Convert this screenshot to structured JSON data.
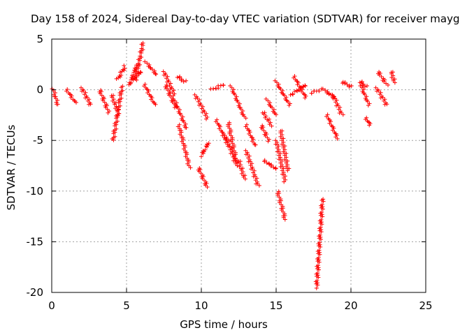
{
  "chart_data": {
    "type": "scatter",
    "title": "Day 158 of 2024, Sidereal Day-to-day VTEC variation (SDTVAR) for receiver mayg",
    "xlabel": "GPS time / hours",
    "ylabel": "SDTVAR / TECUs",
    "xlim": [
      0,
      25
    ],
    "ylim": [
      -20,
      5
    ],
    "xticks": [
      0,
      5,
      10,
      15,
      20,
      25
    ],
    "yticks": [
      5,
      0,
      -5,
      -10,
      -15,
      -20
    ],
    "grid": true,
    "marker": "+",
    "color": "#ff0000",
    "arcs": [
      {
        "x": [
          0.1,
          0.4
        ],
        "y": [
          0.0,
          -1.5
        ]
      },
      {
        "x": [
          1.0,
          1.6
        ],
        "y": [
          0.0,
          -1.3
        ]
      },
      {
        "x": [
          2.0,
          2.6
        ],
        "y": [
          0.2,
          -1.5
        ]
      },
      {
        "x": [
          3.2,
          3.8
        ],
        "y": [
          0.0,
          -2.2
        ]
      },
      {
        "x": [
          4.0,
          4.5
        ],
        "y": [
          -0.5,
          -2.5
        ]
      },
      {
        "x": [
          4.4,
          4.9
        ],
        "y": [
          1.0,
          2.3
        ]
      },
      {
        "x": [
          4.1,
          4.7
        ],
        "y": [
          -5.0,
          0.3
        ]
      },
      {
        "x": [
          5.2,
          5.7
        ],
        "y": [
          0.5,
          2.5
        ]
      },
      {
        "x": [
          5.6,
          6.1
        ],
        "y": [
          1.0,
          4.6
        ]
      },
      {
        "x": [
          5.3,
          6.0
        ],
        "y": [
          0.8,
          1.8
        ]
      },
      {
        "x": [
          6.3,
          7.0
        ],
        "y": [
          2.7,
          1.5
        ]
      },
      {
        "x": [
          6.2,
          6.9
        ],
        "y": [
          0.5,
          -1.5
        ]
      },
      {
        "x": [
          7.5,
          8.2
        ],
        "y": [
          1.8,
          -0.5
        ]
      },
      {
        "x": [
          7.6,
          8.3
        ],
        "y": [
          0.5,
          -1.8
        ]
      },
      {
        "x": [
          8.4,
          8.9
        ],
        "y": [
          1.3,
          0.8
        ]
      },
      {
        "x": [
          8.2,
          9.0
        ],
        "y": [
          -1.0,
          -3.8
        ]
      },
      {
        "x": [
          8.5,
          9.2
        ],
        "y": [
          -3.5,
          -7.6
        ]
      },
      {
        "x": [
          9.6,
          10.4
        ],
        "y": [
          -0.5,
          -2.8
        ]
      },
      {
        "x": [
          9.8,
          10.4
        ],
        "y": [
          -7.7,
          -9.6
        ]
      },
      {
        "x": [
          10.0,
          10.5
        ],
        "y": [
          -6.5,
          -5.2
        ]
      },
      {
        "x": [
          10.7,
          11.5
        ],
        "y": [
          0.0,
          0.5
        ]
      },
      {
        "x": [
          11.0,
          11.8
        ],
        "y": [
          -3.0,
          -5.5
        ]
      },
      {
        "x": [
          11.6,
          12.3
        ],
        "y": [
          -4.5,
          -7.2
        ]
      },
      {
        "x": [
          11.8,
          12.4
        ],
        "y": [
          -3.2,
          -7.5
        ]
      },
      {
        "x": [
          12.5,
          12.9
        ],
        "y": [
          -7.0,
          -8.8
        ]
      },
      {
        "x": [
          12.0,
          12.9
        ],
        "y": [
          0.3,
          -2.8
        ]
      },
      {
        "x": [
          13.0,
          13.6
        ],
        "y": [
          -3.5,
          -5.5
        ]
      },
      {
        "x": [
          13.0,
          13.8
        ],
        "y": [
          -6.0,
          -9.5
        ]
      },
      {
        "x": [
          14.0,
          14.5
        ],
        "y": [
          -3.5,
          -5.0
        ]
      },
      {
        "x": [
          14.1,
          14.7
        ],
        "y": [
          -2.2,
          -3.5
        ]
      },
      {
        "x": [
          14.4,
          15.0
        ],
        "y": [
          -1.0,
          -2.5
        ]
      },
      {
        "x": [
          14.2,
          15.0
        ],
        "y": [
          -7.0,
          -7.8
        ]
      },
      {
        "x": [
          15.0,
          15.6
        ],
        "y": [
          -5.0,
          -9.0
        ]
      },
      {
        "x": [
          15.1,
          15.6
        ],
        "y": [
          -10.0,
          -12.8
        ]
      },
      {
        "x": [
          15.3,
          15.8
        ],
        "y": [
          -4.0,
          -8.0
        ]
      },
      {
        "x": [
          15.0,
          15.9
        ],
        "y": [
          0.8,
          -1.5
        ]
      },
      {
        "x": [
          16.2,
          17.0
        ],
        "y": [
          1.3,
          -0.8
        ]
      },
      {
        "x": [
          16.0,
          17.0
        ],
        "y": [
          -0.5,
          0.5
        ]
      },
      {
        "x": [
          17.3,
          18.0
        ],
        "y": [
          -0.3,
          0.0
        ]
      },
      {
        "x": [
          17.7,
          18.1
        ],
        "y": [
          -19.5,
          -10.8
        ]
      },
      {
        "x": [
          18.2,
          18.9
        ],
        "y": [
          0.0,
          -0.8
        ]
      },
      {
        "x": [
          18.4,
          19.1
        ],
        "y": [
          -2.5,
          -4.8
        ]
      },
      {
        "x": [
          18.8,
          19.4
        ],
        "y": [
          -0.5,
          -2.5
        ]
      },
      {
        "x": [
          19.4,
          20.0
        ],
        "y": [
          0.8,
          0.3
        ]
      },
      {
        "x": [
          20.6,
          21.0
        ],
        "y": [
          0.8,
          0.3
        ]
      },
      {
        "x": [
          20.7,
          21.2
        ],
        "y": [
          0.3,
          -1.5
        ]
      },
      {
        "x": [
          21.0,
          21.3
        ],
        "y": [
          -2.8,
          -3.5
        ]
      },
      {
        "x": [
          21.7,
          22.4
        ],
        "y": [
          0.2,
          -1.5
        ]
      },
      {
        "x": [
          21.8,
          22.4
        ],
        "y": [
          1.8,
          0.5
        ]
      },
      {
        "x": [
          22.7,
          22.9
        ],
        "y": [
          1.8,
          0.7
        ]
      }
    ]
  }
}
